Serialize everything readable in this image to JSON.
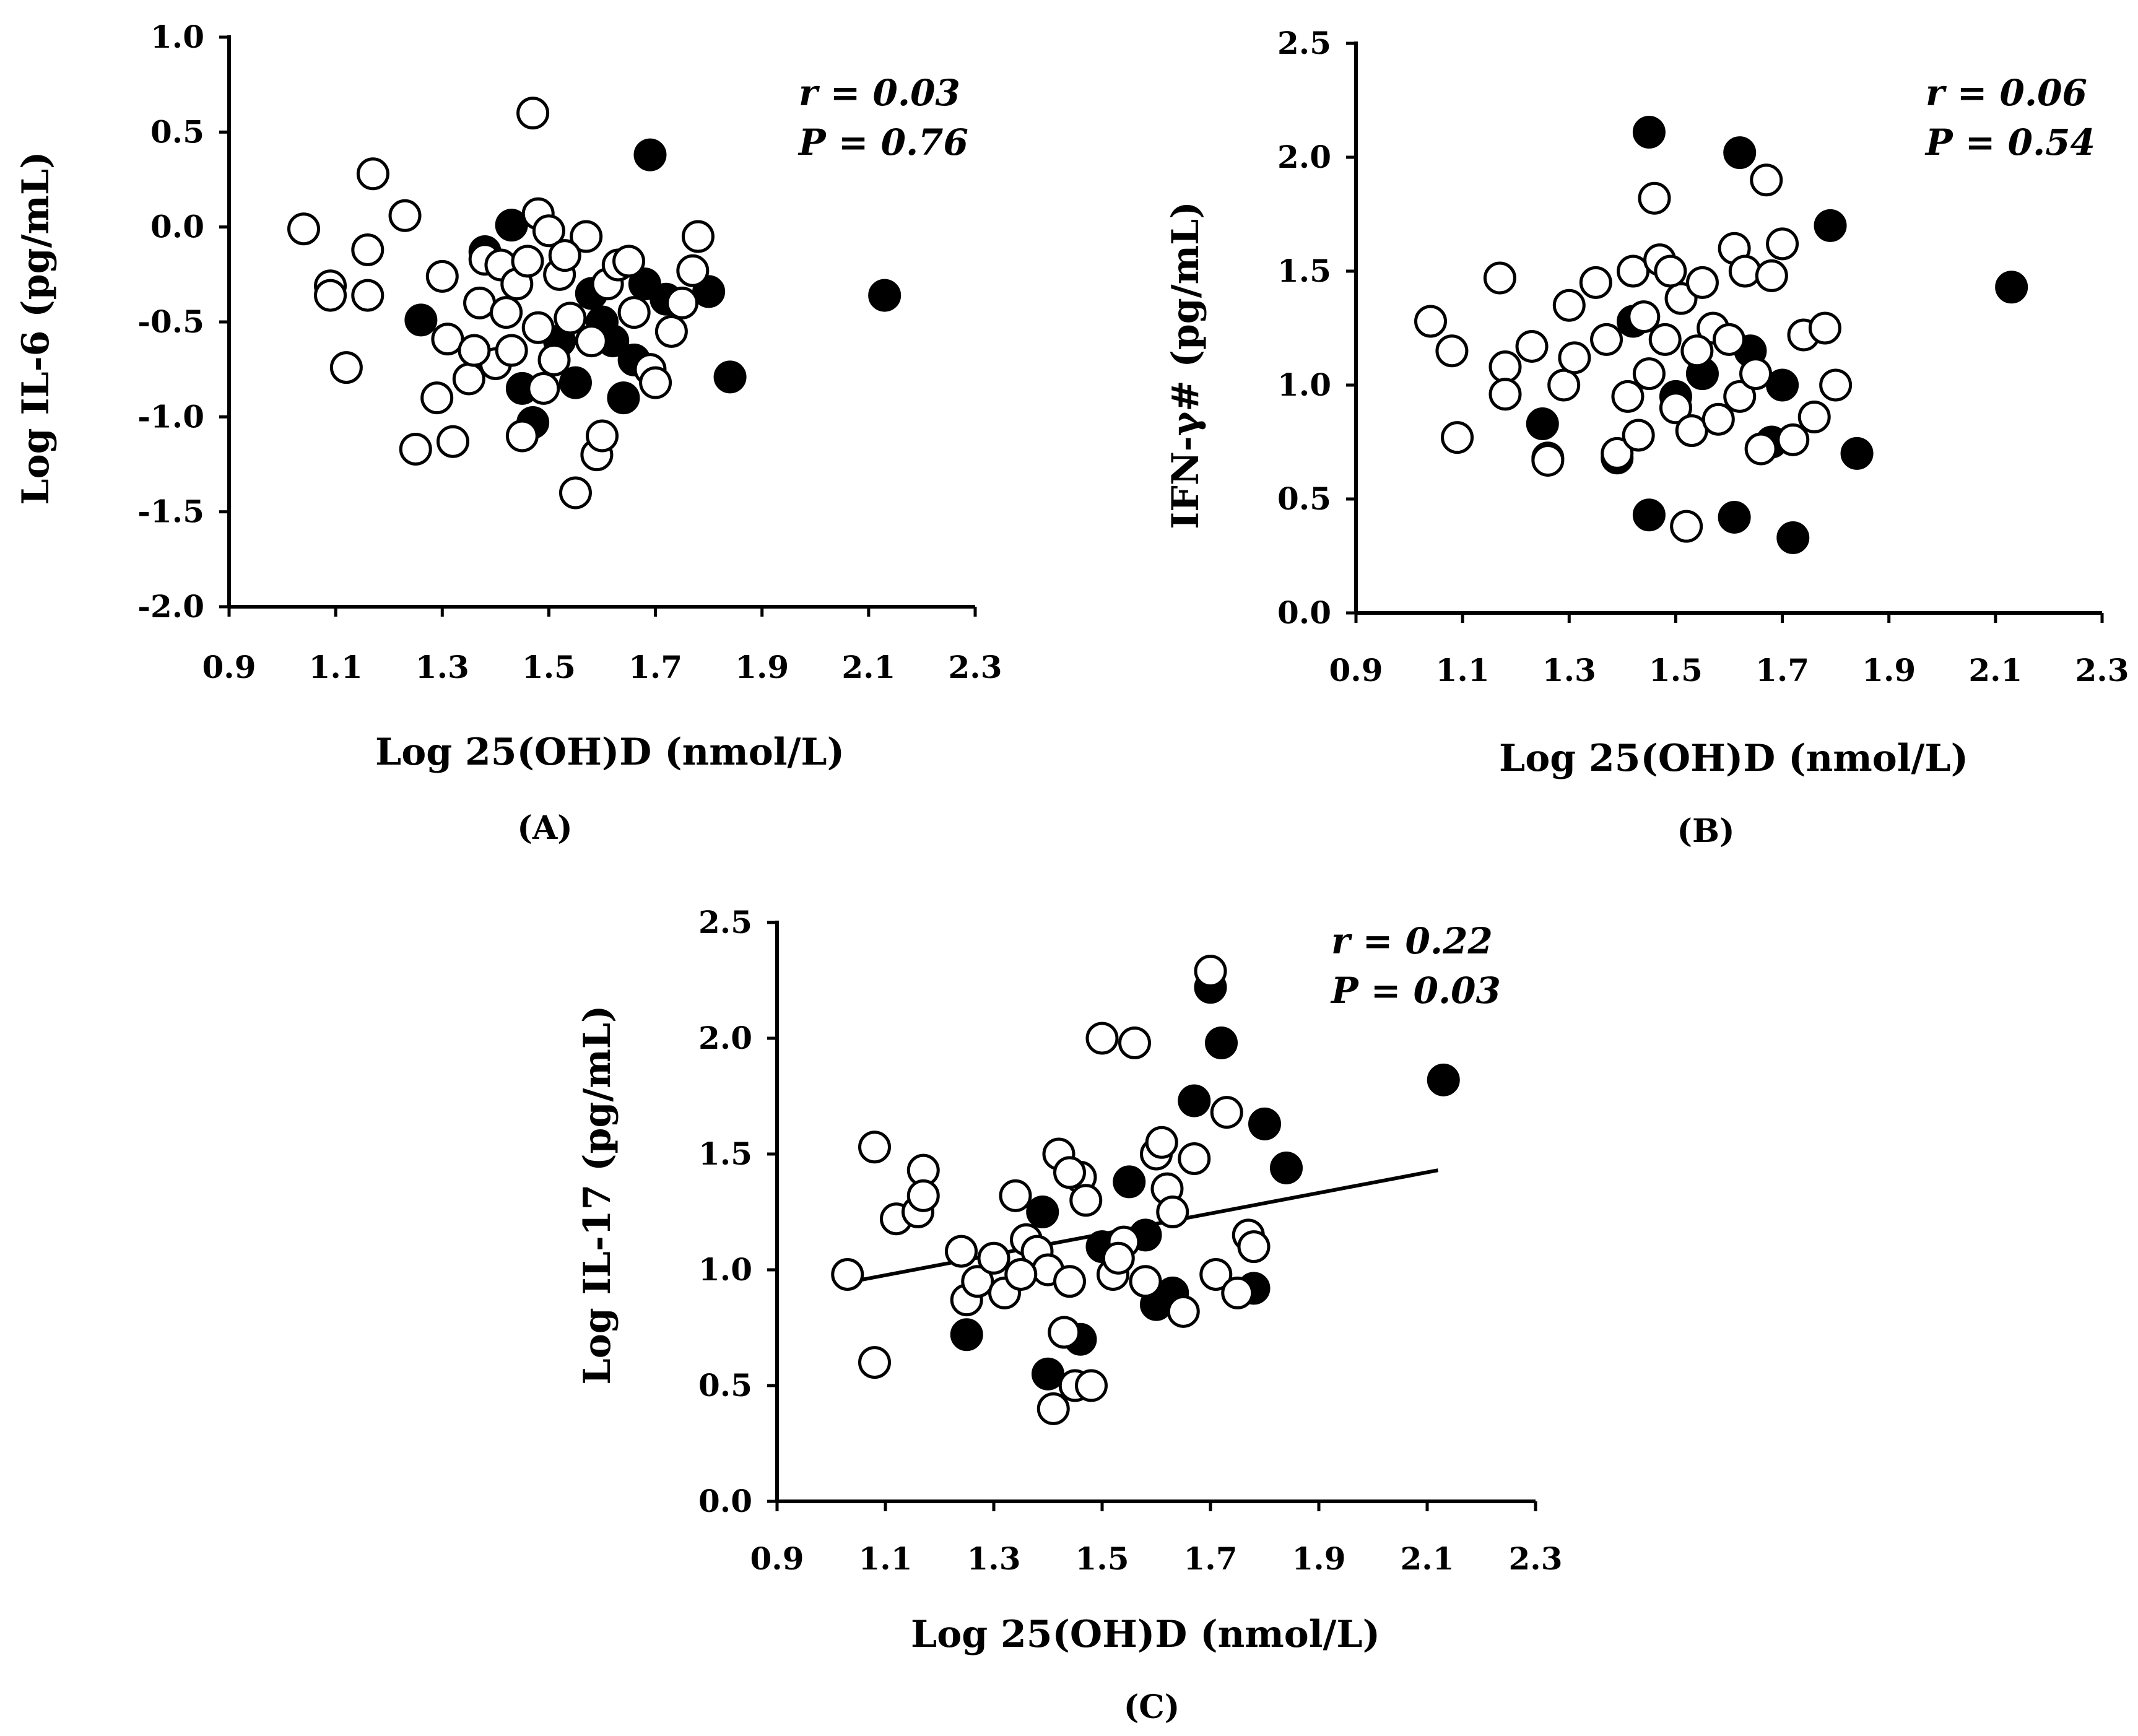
{
  "chart_data": [
    {
      "type": "scatter",
      "panel_label": "(A)",
      "xlabel": "Log 25(OH)D (nmol/L)",
      "ylabel": "Log IL-6 (pg/mL)",
      "xlim": [
        0.9,
        2.3
      ],
      "ylim": [
        -2.0,
        1.0
      ],
      "x_ticks": [
        "0.9",
        "1.1",
        "1.3",
        "1.5",
        "1.7",
        "1.9",
        "2.1",
        "2.3"
      ],
      "y_ticks": [
        "-2.0",
        "-1.5",
        "-1.0",
        "-0.5",
        "0.0",
        "0.5",
        "1.0"
      ],
      "stat_r": "r = 0.03",
      "stat_p": "P = 0.76",
      "regression_line": null,
      "series": [
        {
          "name": "filled",
          "fill": "#000000",
          "points": [
            [
              1.69,
              0.38
            ],
            [
              2.13,
              -0.36
            ],
            [
              1.84,
              -0.79
            ],
            [
              1.26,
              -0.49
            ],
            [
              1.43,
              0.01
            ],
            [
              1.38,
              -0.13
            ],
            [
              1.47,
              -1.03
            ],
            [
              1.8,
              -0.34
            ],
            [
              1.62,
              -0.6
            ],
            [
              1.64,
              -0.9
            ],
            [
              1.55,
              -0.82
            ],
            [
              1.6,
              -0.5
            ],
            [
              1.68,
              -0.3
            ],
            [
              1.45,
              -0.85
            ],
            [
              1.52,
              -0.6
            ],
            [
              1.66,
              -0.7
            ],
            [
              1.58,
              -0.35
            ],
            [
              1.72,
              -0.38
            ]
          ]
        },
        {
          "name": "open",
          "fill": "#ffffff",
          "points": [
            [
              1.47,
              0.6
            ],
            [
              1.04,
              -0.01
            ],
            [
              1.09,
              -0.31
            ],
            [
              1.09,
              -0.36
            ],
            [
              1.12,
              -0.74
            ],
            [
              1.17,
              0.28
            ],
            [
              1.16,
              -0.12
            ],
            [
              1.16,
              -0.36
            ],
            [
              1.23,
              0.06
            ],
            [
              1.25,
              -1.17
            ],
            [
              1.29,
              -0.9
            ],
            [
              1.3,
              -0.26
            ],
            [
              1.31,
              -0.59
            ],
            [
              1.32,
              -1.13
            ],
            [
              1.35,
              -0.8
            ],
            [
              1.37,
              -0.4
            ],
            [
              1.38,
              -0.17
            ],
            [
              1.4,
              -0.72
            ],
            [
              1.41,
              -0.2
            ],
            [
              1.42,
              -0.45
            ],
            [
              1.44,
              -0.3
            ],
            [
              1.45,
              -1.1
            ],
            [
              1.46,
              -0.18
            ],
            [
              1.48,
              0.07
            ],
            [
              1.48,
              -0.53
            ],
            [
              1.5,
              -0.02
            ],
            [
              1.51,
              -0.7
            ],
            [
              1.52,
              -0.25
            ],
            [
              1.54,
              -0.48
            ],
            [
              1.55,
              -1.4
            ],
            [
              1.57,
              -0.05
            ],
            [
              1.58,
              -0.6
            ],
            [
              1.59,
              -1.2
            ],
            [
              1.6,
              -1.1
            ],
            [
              1.61,
              -0.3
            ],
            [
              1.63,
              -0.2
            ],
            [
              1.65,
              -0.18
            ],
            [
              1.66,
              -0.45
            ],
            [
              1.69,
              -0.75
            ],
            [
              1.7,
              -0.82
            ],
            [
              1.73,
              -0.55
            ],
            [
              1.75,
              -0.4
            ],
            [
              1.77,
              -0.23
            ],
            [
              1.78,
              -0.05
            ],
            [
              1.36,
              -0.65
            ],
            [
              1.43,
              -0.65
            ],
            [
              1.49,
              -0.85
            ],
            [
              1.53,
              -0.15
            ]
          ]
        }
      ]
    },
    {
      "type": "scatter",
      "panel_label": "(B)",
      "xlabel": "Log 25(OH)D (nmol/L)",
      "ylabel": "IFN-γ# (pg/mL)",
      "xlim": [
        0.9,
        2.3
      ],
      "ylim": [
        0.0,
        2.5
      ],
      "x_ticks": [
        "0.9",
        "1.1",
        "1.3",
        "1.5",
        "1.7",
        "1.9",
        "2.1",
        "2.3"
      ],
      "y_ticks": [
        "0.0",
        "0.5",
        "1.0",
        "1.5",
        "2.0",
        "2.5"
      ],
      "stat_r": "r = 0.06",
      "stat_p": "P = 0.54",
      "regression_line": null,
      "series": [
        {
          "name": "filled",
          "fill": "#000000",
          "points": [
            [
              1.45,
              2.11
            ],
            [
              1.62,
              2.02
            ],
            [
              1.79,
              1.7
            ],
            [
              2.13,
              1.43
            ],
            [
              1.25,
              0.83
            ],
            [
              1.26,
              0.68
            ],
            [
              1.39,
              0.68
            ],
            [
              1.45,
              0.43
            ],
            [
              1.61,
              0.42
            ],
            [
              1.72,
              0.33
            ],
            [
              1.84,
              0.7
            ],
            [
              1.68,
              0.75
            ],
            [
              1.5,
              0.95
            ],
            [
              1.55,
              1.05
            ],
            [
              1.7,
              1.0
            ],
            [
              1.42,
              1.28
            ],
            [
              1.64,
              1.15
            ]
          ]
        },
        {
          "name": "open",
          "fill": "#ffffff",
          "points": [
            [
              1.04,
              1.28
            ],
            [
              1.08,
              1.15
            ],
            [
              1.09,
              0.77
            ],
            [
              1.17,
              1.47
            ],
            [
              1.18,
              1.08
            ],
            [
              1.18,
              0.96
            ],
            [
              1.23,
              1.17
            ],
            [
              1.26,
              0.67
            ],
            [
              1.29,
              1.0
            ],
            [
              1.3,
              1.35
            ],
            [
              1.31,
              1.12
            ],
            [
              1.35,
              1.45
            ],
            [
              1.37,
              1.2
            ],
            [
              1.39,
              0.7
            ],
            [
              1.41,
              0.95
            ],
            [
              1.42,
              1.5
            ],
            [
              1.43,
              0.78
            ],
            [
              1.44,
              1.3
            ],
            [
              1.45,
              1.05
            ],
            [
              1.46,
              1.82
            ],
            [
              1.47,
              1.55
            ],
            [
              1.48,
              1.2
            ],
            [
              1.5,
              0.9
            ],
            [
              1.51,
              1.38
            ],
            [
              1.52,
              0.38
            ],
            [
              1.53,
              0.8
            ],
            [
              1.55,
              1.45
            ],
            [
              1.57,
              1.25
            ],
            [
              1.58,
              0.85
            ],
            [
              1.6,
              1.2
            ],
            [
              1.61,
              1.6
            ],
            [
              1.62,
              0.95
            ],
            [
              1.63,
              1.5
            ],
            [
              1.65,
              1.05
            ],
            [
              1.66,
              0.72
            ],
            [
              1.67,
              1.9
            ],
            [
              1.68,
              1.48
            ],
            [
              1.7,
              1.62
            ],
            [
              1.72,
              0.76
            ],
            [
              1.74,
              1.22
            ],
            [
              1.76,
              0.86
            ],
            [
              1.78,
              1.25
            ],
            [
              1.8,
              1.0
            ],
            [
              1.49,
              1.5
            ],
            [
              1.54,
              1.15
            ]
          ]
        }
      ]
    },
    {
      "type": "scatter",
      "panel_label": "(C)",
      "xlabel": "Log 25(OH)D (nmol/L)",
      "ylabel": "Log IL-17 (pg/mL)",
      "xlim": [
        0.9,
        2.3
      ],
      "ylim": [
        0.0,
        2.5
      ],
      "x_ticks": [
        "0.9",
        "1.1",
        "1.3",
        "1.5",
        "1.7",
        "1.9",
        "2.1",
        "2.3"
      ],
      "y_ticks": [
        "0.0",
        "0.5",
        "1.0",
        "1.5",
        "2.0",
        "2.5"
      ],
      "stat_r": "r = 0.22",
      "stat_p": "P = 0.03",
      "regression_line": {
        "x": [
          1.04,
          2.12
        ],
        "y": [
          0.95,
          1.43
        ]
      },
      "series": [
        {
          "name": "filled",
          "fill": "#000000",
          "points": [
            [
              1.7,
              2.22
            ],
            [
              1.72,
              1.98
            ],
            [
              1.67,
              1.73
            ],
            [
              1.8,
              1.63
            ],
            [
              2.13,
              1.82
            ],
            [
              1.84,
              1.44
            ],
            [
              1.25,
              0.72
            ],
            [
              1.4,
              0.55
            ],
            [
              1.46,
              0.7
            ],
            [
              1.55,
              1.38
            ],
            [
              1.6,
              0.85
            ],
            [
              1.63,
              0.9
            ],
            [
              1.78,
              0.92
            ],
            [
              1.39,
              1.25
            ],
            [
              1.5,
              1.1
            ],
            [
              1.58,
              1.15
            ]
          ]
        },
        {
          "name": "open",
          "fill": "#ffffff",
          "points": [
            [
              1.03,
              0.98
            ],
            [
              1.08,
              1.53
            ],
            [
              1.08,
              0.6
            ],
            [
              1.12,
              1.22
            ],
            [
              1.16,
              1.25
            ],
            [
              1.17,
              1.43
            ],
            [
              1.17,
              1.32
            ],
            [
              1.24,
              1.08
            ],
            [
              1.25,
              0.87
            ],
            [
              1.27,
              0.95
            ],
            [
              1.3,
              1.05
            ],
            [
              1.32,
              0.9
            ],
            [
              1.34,
              1.32
            ],
            [
              1.36,
              1.13
            ],
            [
              1.38,
              1.08
            ],
            [
              1.4,
              1.0
            ],
            [
              1.41,
              0.4
            ],
            [
              1.42,
              1.5
            ],
            [
              1.43,
              0.73
            ],
            [
              1.44,
              0.95
            ],
            [
              1.45,
              0.5
            ],
            [
              1.46,
              1.4
            ],
            [
              1.47,
              1.3
            ],
            [
              1.48,
              0.5
            ],
            [
              1.5,
              2.0
            ],
            [
              1.52,
              0.98
            ],
            [
              1.54,
              1.12
            ],
            [
              1.56,
              1.98
            ],
            [
              1.58,
              0.95
            ],
            [
              1.6,
              1.5
            ],
            [
              1.62,
              1.35
            ],
            [
              1.63,
              1.25
            ],
            [
              1.65,
              0.82
            ],
            [
              1.67,
              1.48
            ],
            [
              1.7,
              2.29
            ],
            [
              1.71,
              0.98
            ],
            [
              1.73,
              1.68
            ],
            [
              1.75,
              0.9
            ],
            [
              1.77,
              1.15
            ],
            [
              1.78,
              1.1
            ],
            [
              1.44,
              1.42
            ],
            [
              1.53,
              1.05
            ],
            [
              1.61,
              1.55
            ],
            [
              1.35,
              0.98
            ]
          ]
        }
      ]
    }
  ]
}
